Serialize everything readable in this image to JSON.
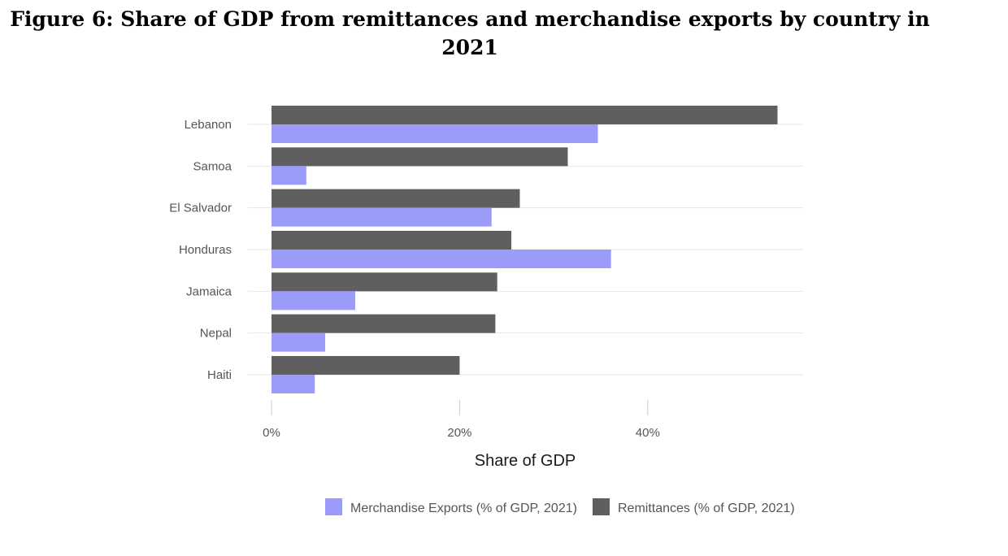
{
  "figure": {
    "title": "Figure 6: Share of GDP from remittances and merchandise exports by country in 2021"
  },
  "colors": {
    "merchandise": "#9a9cf7",
    "remittances": "#5f5f5f",
    "grid": "#e6e6e6"
  },
  "chart_data": {
    "type": "bar",
    "orientation": "horizontal",
    "title": "Figure 6: Share of GDP from remittances and merchandise exports by country in 2021",
    "xlabel": "Share of GDP",
    "ylabel": "",
    "xlim": [
      0,
      56
    ],
    "x_ticks": [
      0,
      20,
      40
    ],
    "x_tick_labels": [
      "0%",
      "20%",
      "40%"
    ],
    "categories": [
      "Lebanon",
      "Samoa",
      "El Salvador",
      "Honduras",
      "Jamaica",
      "Nepal",
      "Haiti"
    ],
    "series": [
      {
        "name": "Remittances (% of GDP, 2021)",
        "values": [
          53.8,
          31.5,
          26.4,
          25.5,
          24.0,
          23.8,
          20.0
        ]
      },
      {
        "name": "Merchandise Exports (% of GDP, 2021)",
        "values": [
          34.7,
          3.7,
          23.4,
          36.1,
          8.9,
          5.7,
          4.6
        ]
      }
    ],
    "legend": {
      "position": "bottom",
      "items": [
        "Merchandise Exports (% of GDP, 2021)",
        "Remittances (% of GDP, 2021)"
      ]
    },
    "grid": true
  }
}
